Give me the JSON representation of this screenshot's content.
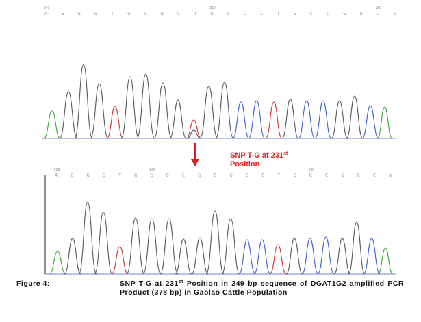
{
  "top_panel": {
    "bases": [
      "A",
      "G",
      "G",
      "G",
      "T",
      "G",
      "G",
      "G",
      "C",
      "T",
      "G",
      "G",
      "C",
      "C",
      "T",
      "G",
      "C",
      "C",
      "G",
      "G",
      "C",
      "A"
    ],
    "tick_labels": [
      "240",
      "250",
      "260"
    ],
    "trace_colors": [
      "#3aa03a",
      "#555555",
      "#555555",
      "#555555",
      "#d03030",
      "#555555",
      "#555555",
      "#555555",
      "#3a5fd0",
      "#d03030",
      "#555555",
      "#555555",
      "#3a5fd0",
      "#3a5fd0",
      "#d03030",
      "#555555",
      "#3a5fd0",
      "#3a5fd0",
      "#555555",
      "#555555",
      "#3a5fd0",
      "#3aa03a"
    ]
  },
  "snp_label": {
    "text": "SNP T-G at 231",
    "sup": "st",
    "text2": "Position"
  },
  "bottom_panel": {
    "bases": [
      "A",
      "G",
      "G",
      "G",
      "T",
      "G",
      "G",
      "G",
      "C",
      "G",
      "G",
      "G",
      "C",
      "C",
      "T",
      "G",
      "C",
      "C",
      "G",
      "G",
      "C",
      "A"
    ],
    "tick_labels": [
      "230",
      "240",
      "250"
    ]
  },
  "caption": {
    "label": "Figure 4:",
    "line1_pre": "SNP T-G at 231",
    "line1_sup": "st",
    "line1_post": " Position in 249 bp sequence of DGAT1G2 amplified PCR Product (378 bp) in Gaolao Cattle Population"
  },
  "colors": {
    "A": "#3aa03a",
    "C": "#3a5fd0",
    "G": "#555555",
    "T": "#d03030",
    "arrow": "#d02020",
    "snp_text": "#e02020"
  }
}
